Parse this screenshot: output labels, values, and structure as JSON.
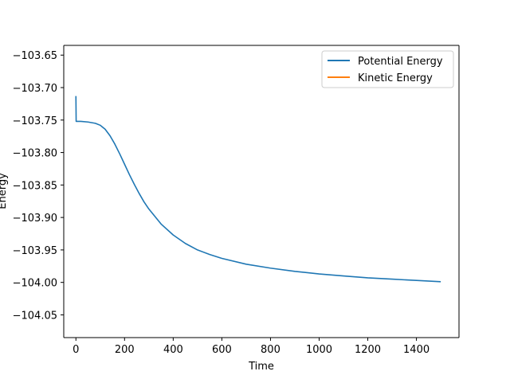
{
  "chart_data": {
    "type": "line",
    "title": "",
    "xlabel": "Time",
    "ylabel": "Energy",
    "xlim": [
      -50,
      1575
    ],
    "ylim": [
      -104.085,
      -103.635
    ],
    "xticks": [
      0,
      200,
      400,
      600,
      800,
      1000,
      1200,
      1400
    ],
    "xtick_labels": [
      "0",
      "200",
      "400",
      "600",
      "800",
      "1000",
      "1200",
      "1400"
    ],
    "yticks": [
      -103.65,
      -103.7,
      -103.75,
      -103.8,
      -103.85,
      -103.9,
      -103.95,
      -104.0,
      -104.05
    ],
    "ytick_labels": [
      "−103.65",
      "−103.70",
      "−103.75",
      "−103.80",
      "−103.85",
      "−103.90",
      "−103.95",
      "−104.00",
      "−104.05"
    ],
    "grid": false,
    "legend_position": "top-right",
    "series": [
      {
        "name": "Potential Energy",
        "color": "#1f77b4",
        "x": [
          0,
          1,
          2,
          20,
          50,
          80,
          100,
          120,
          140,
          160,
          180,
          200,
          220,
          240,
          260,
          280,
          300,
          350,
          400,
          450,
          500,
          550,
          600,
          700,
          800,
          900,
          1000,
          1100,
          1200,
          1300,
          1400,
          1500
        ],
        "y": [
          -103.713,
          -103.752,
          -103.752,
          -103.752,
          -103.753,
          -103.755,
          -103.758,
          -103.764,
          -103.774,
          -103.787,
          -103.802,
          -103.818,
          -103.834,
          -103.849,
          -103.863,
          -103.876,
          -103.887,
          -103.91,
          -103.927,
          -103.94,
          -103.95,
          -103.957,
          -103.963,
          -103.972,
          -103.978,
          -103.983,
          -103.987,
          -103.99,
          -103.993,
          -103.995,
          -103.997,
          -103.999
        ]
      },
      {
        "name": "Kinetic Energy",
        "color": "#ff7f0e",
        "x": [],
        "y": []
      }
    ]
  }
}
